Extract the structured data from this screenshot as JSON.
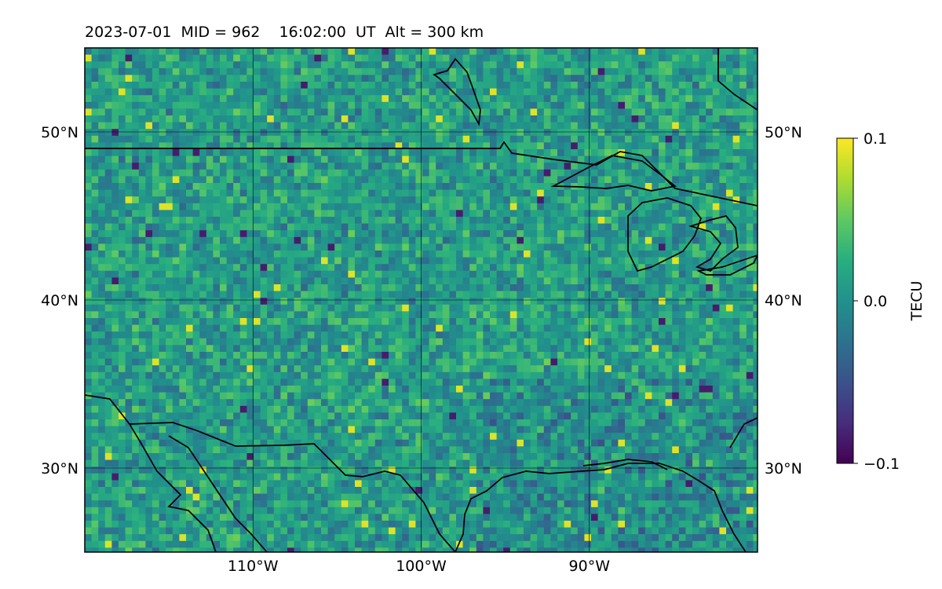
{
  "title": "2023-07-01  MID = 962    16:02:00  UT  Alt = 300 km",
  "colorbar": {
    "label": "TECU",
    "ticks": [
      {
        "value": 0.1,
        "label": "0.1"
      },
      {
        "value": 0.0,
        "label": "0.0"
      },
      {
        "value": -0.1,
        "label": "−0.1"
      }
    ],
    "range": [
      -0.1,
      0.1
    ],
    "colormap": "viridis"
  },
  "map": {
    "lon_range": [
      -120,
      -80
    ],
    "lat_range": [
      25,
      55
    ],
    "lat_ticks": [
      {
        "value": 50,
        "label": "50°N"
      },
      {
        "value": 40,
        "label": "40°N"
      },
      {
        "value": 30,
        "label": "30°N"
      }
    ],
    "lon_ticks": [
      {
        "value": -110,
        "label": "110°W"
      },
      {
        "value": -100,
        "label": "100°W"
      },
      {
        "value": -90,
        "label": "90°W"
      }
    ],
    "coastline_color": "#000000",
    "gridline_color": "#000000"
  }
}
